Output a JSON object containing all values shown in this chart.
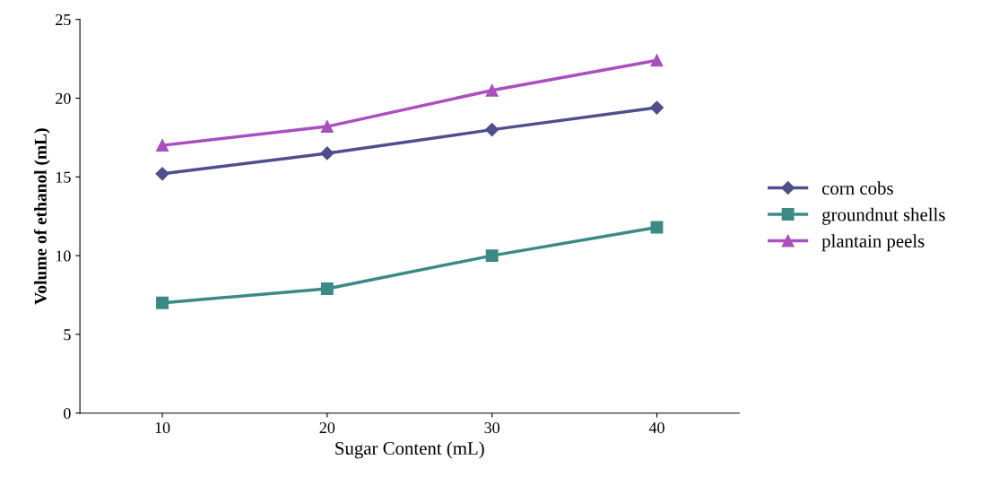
{
  "chart_data": {
    "type": "line",
    "xlabel": "Sugar Content (mL)",
    "ylabel": "Volume of ethanol (mL)",
    "categories": [
      "10",
      "20",
      "30",
      "40"
    ],
    "series": [
      {
        "name": "corn cobs",
        "color": "#4f4f8f",
        "marker": "diamond",
        "values": [
          15.2,
          16.5,
          18.0,
          19.4
        ]
      },
      {
        "name": "groundnut shells",
        "color": "#3b8a88",
        "marker": "square",
        "values": [
          7.0,
          7.9,
          10.0,
          11.8
        ]
      },
      {
        "name": "plantain peels",
        "color": "#a94fbf",
        "marker": "triangle",
        "values": [
          17.0,
          18.2,
          20.5,
          22.4
        ]
      }
    ],
    "ylim": [
      0,
      25
    ],
    "yticks": [
      0,
      5,
      10,
      15,
      20,
      25
    ],
    "grid": false,
    "legend": "right"
  }
}
